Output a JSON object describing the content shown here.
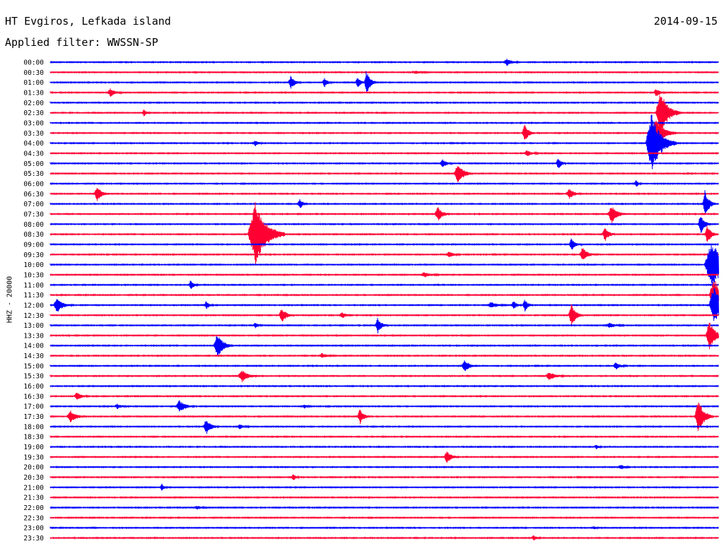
{
  "header": {
    "station": "HT Evgiros, Lefkada island",
    "date": "2014-09-15",
    "filter": "Applied filter: WWSSN-SP"
  },
  "chart_data": {
    "type": "line",
    "subtype": "helicorder",
    "ylabel": "HHZ - 20000",
    "colors": {
      "even_rows": "#0000ff",
      "odd_rows": "#ff0033"
    },
    "rows": [
      "00:00",
      "00:30",
      "01:00",
      "01:30",
      "02:00",
      "02:30",
      "03:00",
      "03:30",
      "04:00",
      "04:30",
      "05:00",
      "05:30",
      "06:00",
      "06:30",
      "07:00",
      "07:30",
      "08:00",
      "08:30",
      "09:00",
      "09:30",
      "10:00",
      "10:30",
      "11:00",
      "11:30",
      "12:00",
      "12:30",
      "13:00",
      "13:30",
      "14:00",
      "14:30",
      "15:00",
      "15:30",
      "16:00",
      "16:30",
      "17:00",
      "17:30",
      "18:00",
      "18:30",
      "19:00",
      "19:30",
      "20:00",
      "20:30",
      "21:00",
      "21:30",
      "22:00",
      "22:30",
      "23:00",
      "23:30"
    ],
    "minutes_per_row": 30,
    "events": [
      {
        "row": 0,
        "minute": 20.5,
        "amp": 0.7,
        "dur": 1.2
      },
      {
        "row": 1,
        "minute": 16.4,
        "amp": 0.3,
        "dur": 1.5
      },
      {
        "row": 2,
        "minute": 10.8,
        "amp": 1.3,
        "dur": 1.0
      },
      {
        "row": 2,
        "minute": 12.3,
        "amp": 1.0,
        "dur": 0.8
      },
      {
        "row": 2,
        "minute": 13.8,
        "amp": 1.2,
        "dur": 0.8
      },
      {
        "row": 2,
        "minute": 14.2,
        "amp": 2.5,
        "dur": 1.0
      },
      {
        "row": 3,
        "minute": 2.7,
        "amp": 0.8,
        "dur": 1.2
      },
      {
        "row": 3,
        "minute": 27.2,
        "amp": 0.8,
        "dur": 1.0
      },
      {
        "row": 5,
        "minute": 4.2,
        "amp": 0.8,
        "dur": 0.6
      },
      {
        "row": 5,
        "minute": 27.4,
        "amp": 4.5,
        "dur": 2.0
      },
      {
        "row": 7,
        "minute": 21.3,
        "amp": 1.8,
        "dur": 1.0
      },
      {
        "row": 7,
        "minute": 27.2,
        "amp": 3.0,
        "dur": 2.0
      },
      {
        "row": 8,
        "minute": 9.2,
        "amp": 0.6,
        "dur": 0.8
      },
      {
        "row": 8,
        "minute": 27.0,
        "amp": 6.0,
        "dur": 2.5
      },
      {
        "row": 9,
        "minute": 21.4,
        "amp": 0.6,
        "dur": 1.2
      },
      {
        "row": 10,
        "minute": 17.6,
        "amp": 0.9,
        "dur": 1.0
      },
      {
        "row": 10,
        "minute": 22.8,
        "amp": 1.3,
        "dur": 0.8
      },
      {
        "row": 11,
        "minute": 18.3,
        "amp": 2.0,
        "dur": 1.5
      },
      {
        "row": 12,
        "minute": 26.3,
        "amp": 0.7,
        "dur": 0.6
      },
      {
        "row": 13,
        "minute": 2.1,
        "amp": 1.5,
        "dur": 1.2
      },
      {
        "row": 13,
        "minute": 23.3,
        "amp": 1.0,
        "dur": 1.2
      },
      {
        "row": 14,
        "minute": 11.2,
        "amp": 1.0,
        "dur": 0.8
      },
      {
        "row": 14,
        "minute": 29.4,
        "amp": 3.0,
        "dur": 1.0
      },
      {
        "row": 15,
        "minute": 17.4,
        "amp": 1.5,
        "dur": 1.2
      },
      {
        "row": 15,
        "minute": 25.2,
        "amp": 1.8,
        "dur": 1.5
      },
      {
        "row": 16,
        "minute": 29.2,
        "amp": 2.0,
        "dur": 1.0
      },
      {
        "row": 17,
        "minute": 9.2,
        "amp": 6.5,
        "dur": 3.0
      },
      {
        "row": 17,
        "minute": 24.9,
        "amp": 1.5,
        "dur": 1.0
      },
      {
        "row": 17,
        "minute": 29.5,
        "amp": 2.0,
        "dur": 1.0
      },
      {
        "row": 18,
        "minute": 23.4,
        "amp": 1.2,
        "dur": 1.0
      },
      {
        "row": 19,
        "minute": 23.9,
        "amp": 1.5,
        "dur": 1.2
      },
      {
        "row": 19,
        "minute": 17.9,
        "amp": 0.6,
        "dur": 1.2
      },
      {
        "row": 20,
        "minute": 29.7,
        "amp": 5.0,
        "dur": 3.0
      },
      {
        "row": 21,
        "minute": 16.8,
        "amp": 0.5,
        "dur": 1.5
      },
      {
        "row": 22,
        "minute": 6.3,
        "amp": 0.9,
        "dur": 0.8
      },
      {
        "row": 23,
        "minute": 29.8,
        "amp": 3.5,
        "dur": 2.0
      },
      {
        "row": 24,
        "minute": 0.3,
        "amp": 1.5,
        "dur": 1.5
      },
      {
        "row": 24,
        "minute": 7.0,
        "amp": 0.8,
        "dur": 0.8
      },
      {
        "row": 24,
        "minute": 19.8,
        "amp": 0.6,
        "dur": 1.5
      },
      {
        "row": 24,
        "minute": 20.8,
        "amp": 0.9,
        "dur": 0.8
      },
      {
        "row": 24,
        "minute": 21.3,
        "amp": 1.3,
        "dur": 0.8
      },
      {
        "row": 24,
        "minute": 29.8,
        "amp": 4.0,
        "dur": 2.0
      },
      {
        "row": 25,
        "minute": 10.4,
        "amp": 1.5,
        "dur": 1.2
      },
      {
        "row": 25,
        "minute": 23.4,
        "amp": 2.2,
        "dur": 1.2
      },
      {
        "row": 25,
        "minute": 13.1,
        "amp": 0.6,
        "dur": 1.0
      },
      {
        "row": 26,
        "minute": 14.7,
        "amp": 1.6,
        "dur": 1.0
      },
      {
        "row": 26,
        "minute": 9.2,
        "amp": 0.6,
        "dur": 0.8
      },
      {
        "row": 26,
        "minute": 25.1,
        "amp": 0.5,
        "dur": 1.5
      },
      {
        "row": 27,
        "minute": 29.6,
        "amp": 3.0,
        "dur": 1.5
      },
      {
        "row": 28,
        "minute": 7.5,
        "amp": 2.5,
        "dur": 1.5
      },
      {
        "row": 29,
        "minute": 12.2,
        "amp": 0.5,
        "dur": 1.2
      },
      {
        "row": 30,
        "minute": 18.6,
        "amp": 1.3,
        "dur": 1.2
      },
      {
        "row": 30,
        "minute": 25.4,
        "amp": 0.7,
        "dur": 1.2
      },
      {
        "row": 31,
        "minute": 8.6,
        "amp": 1.3,
        "dur": 1.5
      },
      {
        "row": 31,
        "minute": 22.4,
        "amp": 0.8,
        "dur": 1.5
      },
      {
        "row": 33,
        "minute": 1.2,
        "amp": 0.8,
        "dur": 1.2
      },
      {
        "row": 34,
        "minute": 3.0,
        "amp": 0.5,
        "dur": 1.0
      },
      {
        "row": 34,
        "minute": 5.8,
        "amp": 1.2,
        "dur": 1.5
      },
      {
        "row": 34,
        "minute": 11.4,
        "amp": 0.4,
        "dur": 0.8
      },
      {
        "row": 35,
        "minute": 0.9,
        "amp": 1.2,
        "dur": 1.5
      },
      {
        "row": 35,
        "minute": 13.9,
        "amp": 1.5,
        "dur": 1.0
      },
      {
        "row": 35,
        "minute": 29.1,
        "amp": 3.5,
        "dur": 1.5
      },
      {
        "row": 36,
        "minute": 7.0,
        "amp": 1.5,
        "dur": 1.2
      },
      {
        "row": 36,
        "minute": 8.5,
        "amp": 0.5,
        "dur": 1.0
      },
      {
        "row": 38,
        "minute": 24.5,
        "amp": 0.5,
        "dur": 0.6
      },
      {
        "row": 39,
        "minute": 17.8,
        "amp": 1.2,
        "dur": 1.2
      },
      {
        "row": 40,
        "minute": 25.6,
        "amp": 0.5,
        "dur": 1.0
      },
      {
        "row": 41,
        "minute": 10.9,
        "amp": 0.8,
        "dur": 0.6
      },
      {
        "row": 42,
        "minute": 5.0,
        "amp": 0.8,
        "dur": 0.6
      },
      {
        "row": 44,
        "minute": 6.6,
        "amp": 0.3,
        "dur": 1.2
      },
      {
        "row": 46,
        "minute": 24.4,
        "amp": 0.3,
        "dur": 0.6
      },
      {
        "row": 47,
        "minute": 21.7,
        "amp": 0.5,
        "dur": 0.8
      }
    ]
  }
}
